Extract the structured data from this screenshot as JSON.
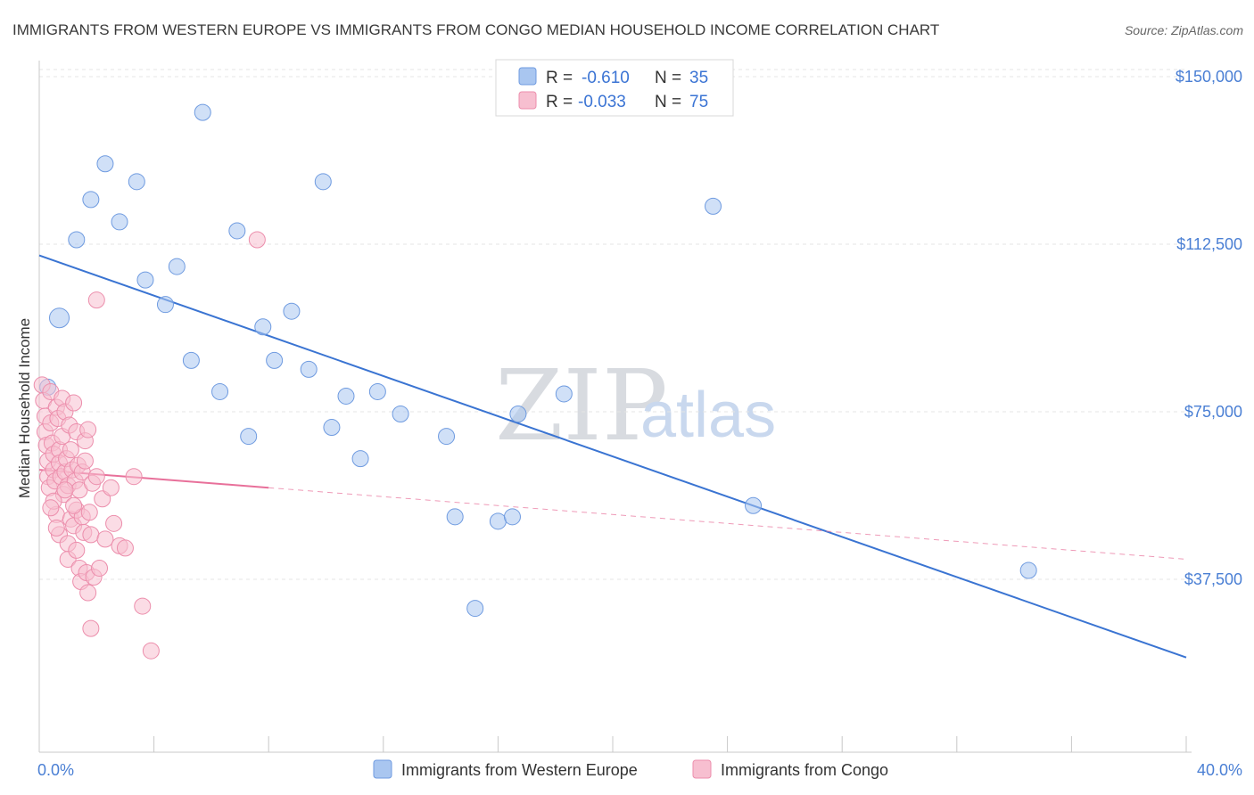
{
  "chart_data": {
    "type": "scatter",
    "title": "IMMIGRANTS FROM WESTERN EUROPE VS IMMIGRANTS FROM CONGO MEDIAN HOUSEHOLD INCOME CORRELATION CHART",
    "source": "Source: ZipAtlas.com",
    "ylabel": "Median Household Income",
    "xlim": [
      0,
      40
    ],
    "ylim": [
      0,
      155000
    ],
    "x_tick_labels": [
      "0.0%",
      "40.0%"
    ],
    "y_ticks": [
      {
        "value": 150000,
        "label": "$150,000"
      },
      {
        "value": 112500,
        "label": "$112,500"
      },
      {
        "value": 75000,
        "label": "$75,000"
      },
      {
        "value": 37500,
        "label": "$37,500"
      }
    ],
    "watermark": {
      "zip": "ZIP",
      "atlas": "atlas"
    },
    "legend": {
      "position": "top-center",
      "entries": [
        {
          "r_label": "R =",
          "r_value": "-0.610",
          "n_label": "N =",
          "n_value": "35"
        },
        {
          "r_label": "R =",
          "r_value": "-0.033",
          "n_label": "N =",
          "n_value": "75"
        }
      ]
    },
    "series": [
      {
        "name": "Immigrants from Western Europe",
        "color": "#a9c6f0",
        "stroke": "#6f9be0",
        "line_color": "#3a74d2",
        "trend": {
          "x0": 0,
          "y0": 110000,
          "x1": 40,
          "y1": 20000,
          "solid_until": 40
        },
        "points": [
          [
            0.7,
            96000
          ],
          [
            1.3,
            113500
          ],
          [
            1.8,
            122500
          ],
          [
            2.3,
            130500
          ],
          [
            2.8,
            117500
          ],
          [
            3.4,
            126500
          ],
          [
            3.7,
            104500
          ],
          [
            4.4,
            99000
          ],
          [
            4.8,
            107500
          ],
          [
            5.3,
            86500
          ],
          [
            5.7,
            142000
          ],
          [
            6.3,
            79500
          ],
          [
            6.9,
            115500
          ],
          [
            7.3,
            69500
          ],
          [
            7.8,
            94000
          ],
          [
            8.2,
            86500
          ],
          [
            8.8,
            97500
          ],
          [
            9.4,
            84500
          ],
          [
            9.9,
            126500
          ],
          [
            10.2,
            71500
          ],
          [
            10.7,
            78500
          ],
          [
            11.2,
            64500
          ],
          [
            11.8,
            79500
          ],
          [
            12.6,
            74500
          ],
          [
            14.2,
            69500
          ],
          [
            14.5,
            51500
          ],
          [
            15.2,
            31000
          ],
          [
            16.0,
            50500
          ],
          [
            16.5,
            51500
          ],
          [
            16.7,
            74500
          ],
          [
            18.3,
            79000
          ],
          [
            23.5,
            121000
          ],
          [
            24.9,
            54000
          ],
          [
            34.5,
            39500
          ],
          [
            0.3,
            80500
          ]
        ]
      },
      {
        "name": "Immigrants from Congo",
        "color": "#f7bfd0",
        "stroke": "#ec8eac",
        "line_color": "#e8709a",
        "trend": {
          "x0": 0,
          "y0": 62000,
          "x1": 40,
          "y1": 42000,
          "solid_until": 8
        },
        "points": [
          [
            0.1,
            81000
          ],
          [
            0.15,
            77500
          ],
          [
            0.2,
            74000
          ],
          [
            0.2,
            70500
          ],
          [
            0.25,
            67500
          ],
          [
            0.3,
            64000
          ],
          [
            0.3,
            60500
          ],
          [
            0.35,
            58000
          ],
          [
            0.4,
            79500
          ],
          [
            0.4,
            72500
          ],
          [
            0.45,
            68000
          ],
          [
            0.5,
            65500
          ],
          [
            0.5,
            62000
          ],
          [
            0.55,
            59500
          ],
          [
            0.6,
            76000
          ],
          [
            0.6,
            52000
          ],
          [
            0.65,
            73500
          ],
          [
            0.7,
            66500
          ],
          [
            0.7,
            63500
          ],
          [
            0.75,
            60500
          ],
          [
            0.8,
            78000
          ],
          [
            0.8,
            69500
          ],
          [
            0.85,
            56500
          ],
          [
            0.9,
            75000
          ],
          [
            0.9,
            61500
          ],
          [
            0.95,
            64500
          ],
          [
            1.0,
            58500
          ],
          [
            1.0,
            42000
          ],
          [
            1.05,
            72000
          ],
          [
            1.1,
            66500
          ],
          [
            1.1,
            51000
          ],
          [
            1.15,
            62000
          ],
          [
            1.2,
            49500
          ],
          [
            1.2,
            77000
          ],
          [
            1.25,
            59500
          ],
          [
            1.3,
            70500
          ],
          [
            1.3,
            53000
          ],
          [
            1.35,
            63000
          ],
          [
            1.4,
            40000
          ],
          [
            1.4,
            57500
          ],
          [
            1.45,
            37000
          ],
          [
            1.5,
            51500
          ],
          [
            1.5,
            61500
          ],
          [
            1.55,
            48000
          ],
          [
            1.6,
            64000
          ],
          [
            1.6,
            68500
          ],
          [
            1.65,
            39000
          ],
          [
            1.7,
            71000
          ],
          [
            1.7,
            34500
          ],
          [
            1.75,
            52500
          ],
          [
            1.8,
            26500
          ],
          [
            1.8,
            47500
          ],
          [
            1.85,
            59000
          ],
          [
            1.9,
            38000
          ],
          [
            2.0,
            100000
          ],
          [
            2.0,
            60500
          ],
          [
            2.1,
            40000
          ],
          [
            2.2,
            55500
          ],
          [
            2.3,
            46500
          ],
          [
            2.5,
            58000
          ],
          [
            2.6,
            50000
          ],
          [
            2.8,
            45000
          ],
          [
            3.0,
            44500
          ],
          [
            3.3,
            60500
          ],
          [
            3.6,
            31500
          ],
          [
            3.9,
            21500
          ],
          [
            7.6,
            113500
          ],
          [
            0.5,
            55000
          ],
          [
            0.7,
            47500
          ],
          [
            1.0,
            45500
          ],
          [
            1.3,
            44000
          ],
          [
            0.4,
            53500
          ],
          [
            0.9,
            57500
          ],
          [
            1.2,
            54000
          ],
          [
            0.6,
            49000
          ]
        ]
      }
    ]
  }
}
